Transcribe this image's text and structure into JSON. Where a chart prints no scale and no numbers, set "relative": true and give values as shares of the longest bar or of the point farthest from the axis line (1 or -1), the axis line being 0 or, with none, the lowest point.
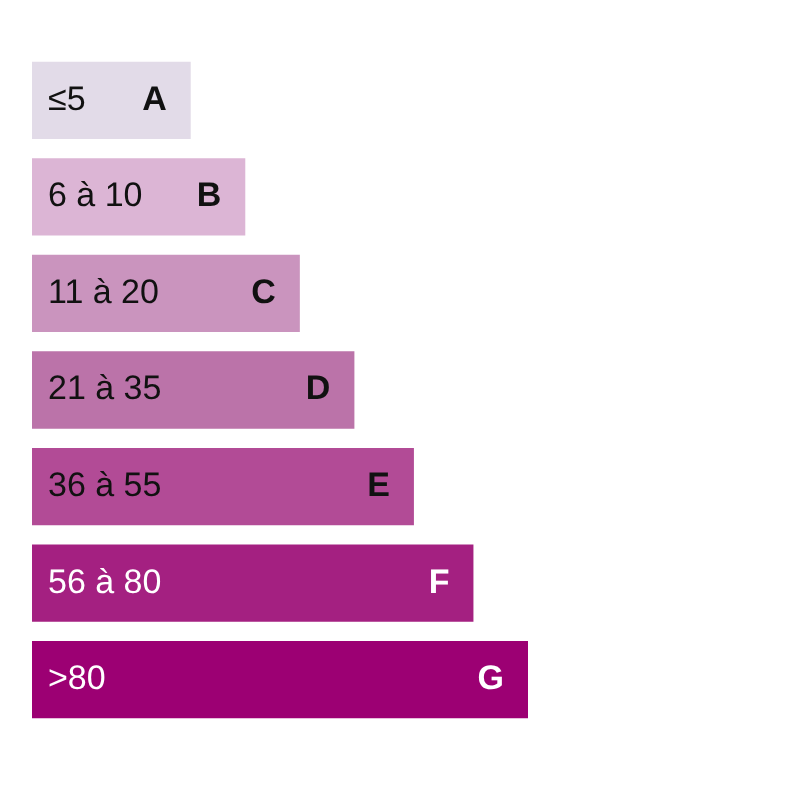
{
  "chart_data": {
    "type": "bar",
    "orientation": "horizontal",
    "relative": true,
    "categories": [
      "≤5",
      "6 à 10",
      "11 à 20",
      "21 à 35",
      "36 à 55",
      "56 à 80",
      ">80"
    ],
    "values": [
      0.32,
      0.43,
      0.54,
      0.65,
      0.77,
      0.89,
      1
    ],
    "colors": [
      "#e2dbe8",
      "#dcb5d5",
      "#ca94be",
      "#bb73a9",
      "#b24b96",
      "#a42081",
      "#9c0073"
    ],
    "annotations": [
      {
        "text": "A",
        "x": 0.32,
        "y": "≤5"
      },
      {
        "text": "B",
        "x": 0.43,
        "y": "6 à 10"
      },
      {
        "text": "C",
        "x": 0.54,
        "y": "11 à 20"
      },
      {
        "text": "D",
        "x": 0.65,
        "y": "21 à 35"
      },
      {
        "text": "E",
        "x": 0.77,
        "y": "36 à 55"
      },
      {
        "text": "F",
        "x": 0.89,
        "y": "56 à 80"
      },
      {
        "text": "G",
        "x": 1,
        "y": ">80"
      }
    ]
  }
}
